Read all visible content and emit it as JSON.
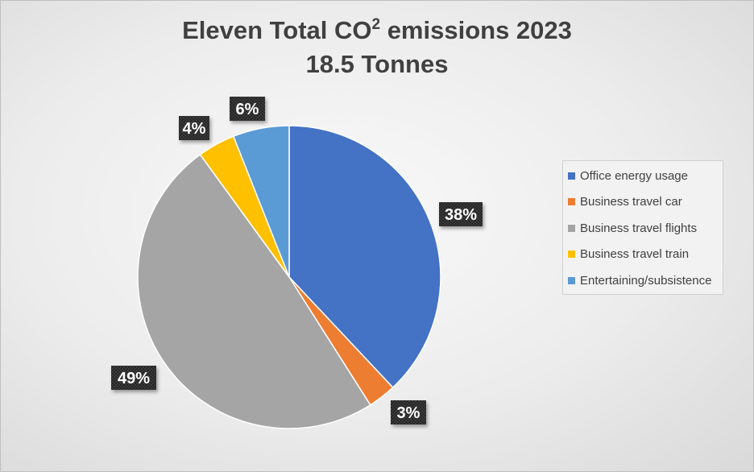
{
  "title": {
    "line1_prefix": "Eleven Total CO",
    "line1_superscript": "2",
    "line1_suffix": " emissions 2023",
    "line2": "18.5 Tonnes"
  },
  "chart_data": {
    "type": "pie",
    "title": "Eleven Total CO2 emissions 2023 18.5 Tonnes",
    "categories": [
      "Office energy usage",
      "Business travel car",
      "Business travel flights",
      "Business travel train",
      "Entertaining/subsistence"
    ],
    "values": [
      38,
      3,
      49,
      4,
      6
    ],
    "data_labels": [
      "38%",
      "3%",
      "49%",
      "4%",
      "6%"
    ],
    "colors": [
      "#4472c4",
      "#ed7d31",
      "#a5a5a5",
      "#ffc000",
      "#5b9bd5"
    ],
    "start_angle_deg": 0,
    "direction": "clockwise",
    "legend_position": "right"
  }
}
